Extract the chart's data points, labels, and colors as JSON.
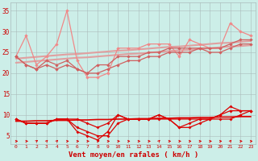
{
  "x": [
    0,
    1,
    2,
    3,
    4,
    5,
    6,
    7,
    8,
    9,
    10,
    11,
    12,
    13,
    14,
    15,
    16,
    17,
    18,
    19,
    20,
    21,
    22,
    23
  ],
  "rafales": [
    24,
    29,
    22,
    24,
    27,
    35,
    23,
    19,
    19,
    20,
    26,
    26,
    26,
    27,
    27,
    27,
    24,
    28,
    27,
    26,
    26,
    32,
    30,
    29
  ],
  "moy_hi": [
    24,
    22,
    21,
    23,
    22,
    23,
    21,
    20,
    22,
    22,
    24,
    24,
    24,
    25,
    25,
    26,
    26,
    26,
    26,
    26,
    26,
    27,
    28,
    28
  ],
  "moy_lo": [
    24,
    22,
    21,
    22,
    21,
    22,
    21,
    20,
    20,
    21,
    22,
    23,
    23,
    24,
    24,
    25,
    25,
    25,
    26,
    25,
    25,
    26,
    27,
    27
  ],
  "trend1": [
    23.5,
    23.7,
    23.9,
    24.1,
    24.3,
    24.5,
    24.6,
    24.8,
    25.0,
    25.2,
    25.4,
    25.5,
    25.7,
    25.9,
    26.1,
    26.3,
    26.4,
    26.6,
    26.8,
    27.0,
    27.2,
    27.3,
    27.5,
    27.7
  ],
  "trend2": [
    22.5,
    22.7,
    22.9,
    23.1,
    23.3,
    23.5,
    23.7,
    23.8,
    24.0,
    24.2,
    24.4,
    24.6,
    24.7,
    24.9,
    25.1,
    25.3,
    25.5,
    25.6,
    25.8,
    26.0,
    26.2,
    26.4,
    26.5,
    26.7
  ],
  "vent_hi": [
    9,
    8,
    8,
    8,
    9,
    9,
    9,
    8,
    7,
    8,
    10,
    9,
    9,
    9,
    10,
    9,
    9,
    9,
    9,
    9,
    10,
    11,
    11,
    11
  ],
  "vent_lo": [
    9,
    8,
    8,
    8,
    9,
    9,
    7,
    6,
    5,
    5,
    8,
    9,
    9,
    9,
    9,
    9,
    7,
    7,
    8,
    9,
    9,
    9,
    10,
    11
  ],
  "vent_mid": [
    9,
    8,
    8,
    8,
    9,
    9,
    6,
    5,
    4,
    6,
    10,
    9,
    9,
    9,
    10,
    9,
    7,
    8,
    9,
    9,
    10,
    12,
    11,
    11
  ],
  "vent_trend": [
    8.5,
    8.5,
    8.6,
    8.6,
    8.7,
    8.7,
    8.8,
    8.8,
    8.9,
    8.9,
    9.0,
    9.0,
    9.1,
    9.1,
    9.2,
    9.2,
    9.3,
    9.3,
    9.4,
    9.4,
    9.5,
    9.5,
    9.6,
    9.6
  ],
  "wind_angles": [
    0,
    0,
    45,
    60,
    60,
    0,
    0,
    0,
    0,
    0,
    0,
    0,
    0,
    0,
    60,
    0,
    0,
    0,
    0,
    0,
    0,
    60,
    0,
    0
  ],
  "bg_color": "#cceee8",
  "grid_color": "#aabbbb",
  "color_rafales": "#f08888",
  "color_moy": "#d06060",
  "color_trend": "#e0a0a0",
  "color_vent_dark": "#dd0000",
  "color_vent_trend": "#cc0000",
  "xlabel": "Vent moyen/en rafales ( km/h )",
  "ylim": [
    3,
    37
  ],
  "yticks": [
    5,
    10,
    15,
    20,
    25,
    30,
    35
  ],
  "marker": "D"
}
